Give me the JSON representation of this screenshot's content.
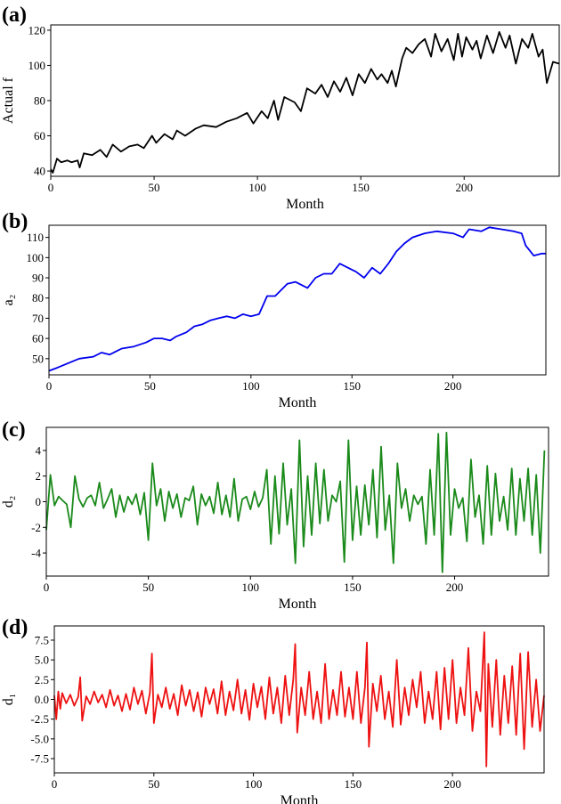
{
  "chart_data": [
    {
      "type": "line",
      "panel_label": "(a)",
      "xlabel": "Month",
      "ylabel": "Actual f",
      "color": "#000000",
      "xlim": [
        0,
        246
      ],
      "ylim": [
        37,
        123
      ],
      "xticks": [
        0,
        50,
        100,
        150,
        200
      ],
      "yticks": [
        40,
        60,
        80,
        100,
        120
      ],
      "series": [
        {
          "x": [
            0,
            1,
            3,
            5,
            8,
            10,
            13,
            14,
            16,
            20,
            24,
            27,
            30,
            34,
            38,
            42,
            45,
            49,
            51,
            55,
            59,
            61,
            65,
            70,
            74,
            80,
            85,
            90,
            95,
            98,
            102,
            105,
            108,
            110,
            113,
            118,
            121,
            124,
            128,
            131,
            134,
            137,
            140,
            143,
            146,
            149,
            152,
            155,
            158,
            160,
            163,
            165,
            167,
            170,
            172,
            175,
            178,
            181,
            184,
            186,
            189,
            192,
            195,
            197,
            199,
            201,
            204,
            206,
            208,
            211,
            214,
            217,
            220,
            222,
            225,
            228,
            231,
            233,
            236,
            238,
            240,
            243,
            246
          ],
          "y": [
            41,
            39,
            47,
            45,
            46,
            45,
            46,
            42,
            50,
            49,
            52,
            48,
            55,
            51,
            54,
            55,
            53,
            60,
            56,
            61,
            58,
            63,
            60,
            64,
            66,
            65,
            68,
            70,
            73,
            67,
            74,
            70,
            80,
            69,
            82,
            79,
            74,
            87,
            84,
            89,
            82,
            91,
            85,
            93,
            83,
            95,
            90,
            98,
            92,
            95,
            90,
            97,
            88,
            104,
            110,
            107,
            112,
            115,
            105,
            118,
            108,
            115,
            103,
            118,
            105,
            116,
            109,
            114,
            104,
            117,
            107,
            119,
            110,
            117,
            101,
            115,
            110,
            118,
            105,
            109,
            90,
            102,
            101
          ]
        }
      ]
    },
    {
      "type": "line",
      "panel_label": "(b)",
      "xlabel": "Month",
      "ylabel": "a₂",
      "color": "#0000ee",
      "xlim": [
        0,
        246
      ],
      "ylim": [
        42,
        116
      ],
      "xticks": [
        0,
        50,
        100,
        150,
        200
      ],
      "yticks": [
        50,
        60,
        70,
        80,
        90,
        100,
        110
      ],
      "series": [
        {
          "x": [
            0,
            4,
            15,
            22,
            26,
            30,
            36,
            42,
            48,
            52,
            56,
            60,
            63,
            68,
            72,
            76,
            80,
            84,
            88,
            92,
            96,
            100,
            104,
            108,
            112,
            118,
            122,
            128,
            132,
            136,
            140,
            144,
            148,
            152,
            156,
            160,
            164,
            168,
            172,
            176,
            180,
            186,
            192,
            200,
            205,
            208,
            214,
            218,
            224,
            230,
            234,
            236,
            240,
            244,
            246
          ],
          "y": [
            44,
            45.5,
            50,
            51,
            53,
            52,
            55,
            56,
            58,
            60,
            60,
            59,
            61,
            63,
            66,
            67,
            69,
            70,
            71,
            70,
            72,
            71,
            72,
            81,
            81,
            87,
            88,
            85,
            90,
            92,
            92,
            97,
            95,
            93,
            90,
            95,
            92,
            97,
            103,
            107,
            110,
            112,
            113,
            112,
            110,
            114,
            113,
            115,
            114,
            113,
            112,
            106,
            101,
            102,
            102
          ]
        }
      ]
    },
    {
      "type": "line",
      "panel_label": "(c)",
      "xlabel": "Month",
      "ylabel": "d₂",
      "color": "#1a8a1a",
      "xlim": [
        0,
        246
      ],
      "ylim": [
        -5.8,
        5.8
      ],
      "xticks": [
        0,
        50,
        100,
        150,
        200
      ],
      "yticks": [
        -4,
        -2,
        0,
        2,
        4
      ],
      "series": [
        {
          "x": [
            0,
            2,
            4,
            6,
            8,
            10,
            12,
            14,
            16,
            18,
            20,
            22,
            24,
            26,
            28,
            30,
            32,
            34,
            36,
            38,
            40,
            42,
            44,
            46,
            48,
            50,
            52,
            54,
            56,
            58,
            60,
            62,
            64,
            66,
            68,
            70,
            72,
            74,
            76,
            78,
            80,
            82,
            84,
            86,
            88,
            90,
            92,
            94,
            96,
            98,
            100,
            102,
            104,
            106,
            108,
            110,
            112,
            114,
            116,
            118,
            120,
            122,
            124,
            126,
            128,
            130,
            132,
            134,
            136,
            138,
            140,
            142,
            144,
            146,
            148,
            150,
            152,
            154,
            156,
            158,
            160,
            162,
            164,
            166,
            168,
            170,
            172,
            174,
            176,
            178,
            180,
            182,
            184,
            186,
            188,
            190,
            192,
            194,
            196,
            198,
            200,
            202,
            204,
            206,
            208,
            210,
            212,
            214,
            216,
            218,
            220,
            222,
            224,
            226,
            228,
            230,
            232,
            234,
            236,
            238,
            240,
            242,
            244
          ],
          "y": [
            -2.2,
            2.1,
            -0.3,
            0.4,
            0.1,
            -0.2,
            -2.0,
            2.0,
            0.2,
            -0.4,
            0.3,
            0.5,
            -0.3,
            1.5,
            -0.5,
            0.2,
            1.0,
            -1.2,
            0.5,
            -0.8,
            0.4,
            -0.2,
            0.6,
            -1.0,
            0.7,
            -3.0,
            3.0,
            -0.3,
            1.0,
            -1.5,
            0.8,
            -0.5,
            0.6,
            -1.2,
            0.3,
            0.1,
            1.2,
            -1.8,
            0.6,
            -0.3,
            0.4,
            -0.9,
            1.5,
            -1.0,
            0.5,
            -1.2,
            1.8,
            -1.5,
            0.2,
            0.4,
            -0.6,
            0.8,
            -0.4,
            0.3,
            2.5,
            -3.3,
            2.0,
            -2.5,
            3.0,
            -1.8,
            1.0,
            -4.8,
            4.8,
            -3.5,
            2.0,
            -2.6,
            3.0,
            -1.7,
            2.5,
            -1.5,
            0.5,
            0.0,
            1.6,
            -4.7,
            4.8,
            -3.0,
            1.2,
            -2.6,
            1.3,
            -1.8,
            2.5,
            -2.8,
            4.3,
            -2.2,
            0.5,
            -4.8,
            3.0,
            -0.5,
            1.0,
            -1.5,
            0.5,
            -0.2,
            0.4,
            -3.3,
            2.5,
            -2.6,
            5.3,
            -5.5,
            5.4,
            -2.6,
            1.0,
            -0.5,
            0.3,
            -3.1,
            3.3,
            -1.2,
            0.5,
            -3.3,
            2.8,
            -2.6,
            2.2,
            -1.5,
            0.4,
            -2.2,
            2.6,
            -2.6,
            1.8,
            -1.5,
            2.6,
            -2.6,
            2.1,
            -4.0,
            4.0
          ]
        }
      ]
    },
    {
      "type": "line",
      "panel_label": "(d)",
      "xlabel": "Month",
      "ylabel": "d₁",
      "color": "#ee1111",
      "xlim": [
        0,
        246
      ],
      "ylim": [
        -9.3,
        9.3
      ],
      "xticks": [
        0,
        50,
        100,
        150,
        200
      ],
      "yticks": [
        -7.5,
        -5.0,
        -2.5,
        0.0,
        2.5,
        5.0,
        7.5
      ],
      "series": [
        {
          "x": [
            0,
            1,
            2,
            3,
            4,
            6,
            8,
            10,
            12,
            13,
            14,
            16,
            18,
            20,
            22,
            24,
            26,
            28,
            30,
            32,
            34,
            36,
            38,
            40,
            42,
            44,
            46,
            48,
            49,
            50,
            52,
            54,
            56,
            58,
            60,
            62,
            64,
            66,
            68,
            70,
            72,
            74,
            76,
            78,
            80,
            82,
            84,
            86,
            88,
            90,
            92,
            94,
            96,
            98,
            100,
            102,
            104,
            106,
            108,
            110,
            112,
            114,
            116,
            118,
            120,
            121,
            122,
            124,
            126,
            128,
            130,
            132,
            134,
            136,
            138,
            140,
            142,
            144,
            146,
            148,
            150,
            152,
            154,
            156,
            157,
            158,
            160,
            162,
            164,
            166,
            168,
            170,
            172,
            174,
            176,
            178,
            180,
            182,
            184,
            186,
            188,
            190,
            192,
            194,
            196,
            198,
            200,
            202,
            204,
            206,
            208,
            210,
            212,
            214,
            216,
            217,
            218,
            220,
            222,
            224,
            226,
            228,
            230,
            232,
            234,
            236,
            238,
            240,
            242,
            244,
            246
          ],
          "y": [
            0.5,
            -2.5,
            1.0,
            -1.2,
            0.8,
            -0.5,
            0.6,
            -0.8,
            0.3,
            2.8,
            -2.7,
            0.4,
            -0.6,
            1.0,
            -0.4,
            0.6,
            -1.0,
            1.2,
            -0.8,
            0.5,
            -1.5,
            0.7,
            -1.3,
            1.5,
            -0.6,
            1.1,
            -1.8,
            0.8,
            5.8,
            -3.0,
            0.6,
            -1.0,
            1.5,
            -1.2,
            0.7,
            -2.0,
            1.8,
            -0.8,
            1.2,
            -1.5,
            0.9,
            -2.2,
            1.5,
            -0.6,
            1.3,
            -1.8,
            2.3,
            -2.0,
            1.0,
            -1.4,
            2.5,
            -1.8,
            1.2,
            -2.6,
            2.0,
            -1.0,
            1.6,
            -2.5,
            2.8,
            -1.8,
            1.5,
            -3.0,
            3.0,
            -2.0,
            2.5,
            7.0,
            -4.2,
            1.5,
            -2.0,
            3.5,
            -2.5,
            1.0,
            -3.0,
            4.5,
            -2.5,
            1.2,
            -2.0,
            3.5,
            -2.2,
            1.5,
            -2.5,
            3.5,
            -3.0,
            1.5,
            7.2,
            -6.0,
            2.0,
            -1.5,
            3.0,
            -2.5,
            1.0,
            -3.5,
            5.0,
            -3.2,
            1.5,
            -2.0,
            2.5,
            -1.0,
            3.5,
            -3.0,
            1.0,
            -2.5,
            3.5,
            -3.8,
            4.0,
            -2.5,
            5.0,
            -3.0,
            1.5,
            -2.0,
            6.5,
            -4.0,
            1.0,
            -1.5,
            8.5,
            -8.5,
            4.5,
            -3.5,
            5.0,
            -4.5,
            3.0,
            -3.0,
            4.2,
            -4.5,
            5.8,
            -6.3,
            6.0,
            -3.5,
            2.5,
            -4.0,
            0.5
          ]
        }
      ]
    }
  ]
}
